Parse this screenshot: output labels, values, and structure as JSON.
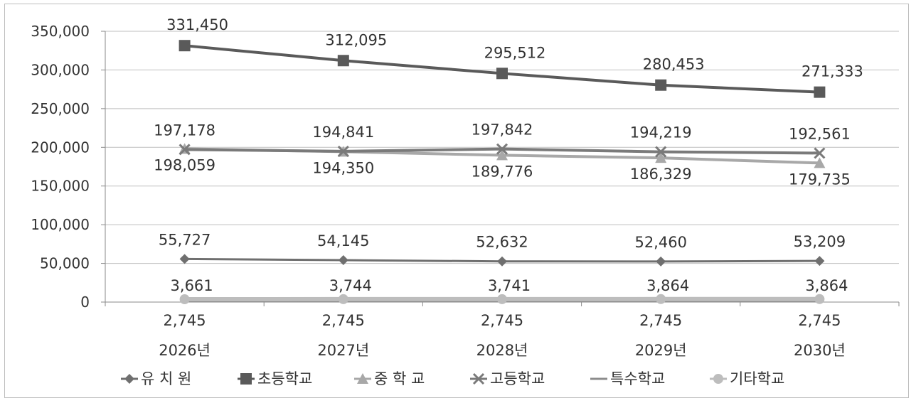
{
  "chart_data": {
    "type": "line",
    "categories": [
      "2026년",
      "2027년",
      "2028년",
      "2029년",
      "2030년"
    ],
    "ylim": [
      0,
      350000
    ],
    "yticks": [
      0,
      50000,
      100000,
      150000,
      200000,
      250000,
      300000,
      350000
    ],
    "ytick_labels": [
      "0",
      "50,000",
      "100,000",
      "150,000",
      "200,000",
      "250,000",
      "300,000",
      "350,000"
    ],
    "grid": true,
    "legend_position": "bottom",
    "series": [
      {
        "name": "유 치 원",
        "marker": "diamond",
        "color": "#6f6f6f",
        "values": [
          55727,
          54145,
          52632,
          52460,
          53209
        ],
        "labels": [
          "55,727",
          "54,145",
          "52,632",
          "52,460",
          "53,209"
        ]
      },
      {
        "name": "초등학교",
        "marker": "square",
        "color": "#5a5a5a",
        "values": [
          331450,
          312095,
          295512,
          280453,
          271333
        ],
        "labels": [
          "331,450",
          "312,095",
          "295,512",
          "280,453",
          "271,333"
        ]
      },
      {
        "name": "중 학 교",
        "marker": "triangle",
        "color": "#a8a8a8",
        "values": [
          198059,
          194350,
          189776,
          186329,
          179735
        ],
        "labels": [
          "198,059",
          "194,350",
          "189,776",
          "186,329",
          "179,735"
        ]
      },
      {
        "name": "고등학교",
        "marker": "x",
        "color": "#7a7a7a",
        "values": [
          197178,
          194841,
          197842,
          194219,
          192561
        ],
        "labels": [
          "197,178",
          "194,841",
          "197,842",
          "194,219",
          "192,561"
        ]
      },
      {
        "name": "특수학교",
        "marker": "none",
        "color": "#8c8c8c",
        "values": [
          2745,
          2745,
          2745,
          2745,
          2745
        ],
        "labels": [
          "2,745",
          "2,745",
          "2,745",
          "2,745",
          "2,745"
        ]
      },
      {
        "name": "기타학교",
        "marker": "circle",
        "color": "#bdbdbd",
        "values": [
          3661,
          3744,
          3741,
          3864,
          3864
        ],
        "labels": [
          "3,661",
          "3,744",
          "3,741",
          "3,864",
          "3,864"
        ]
      }
    ]
  }
}
